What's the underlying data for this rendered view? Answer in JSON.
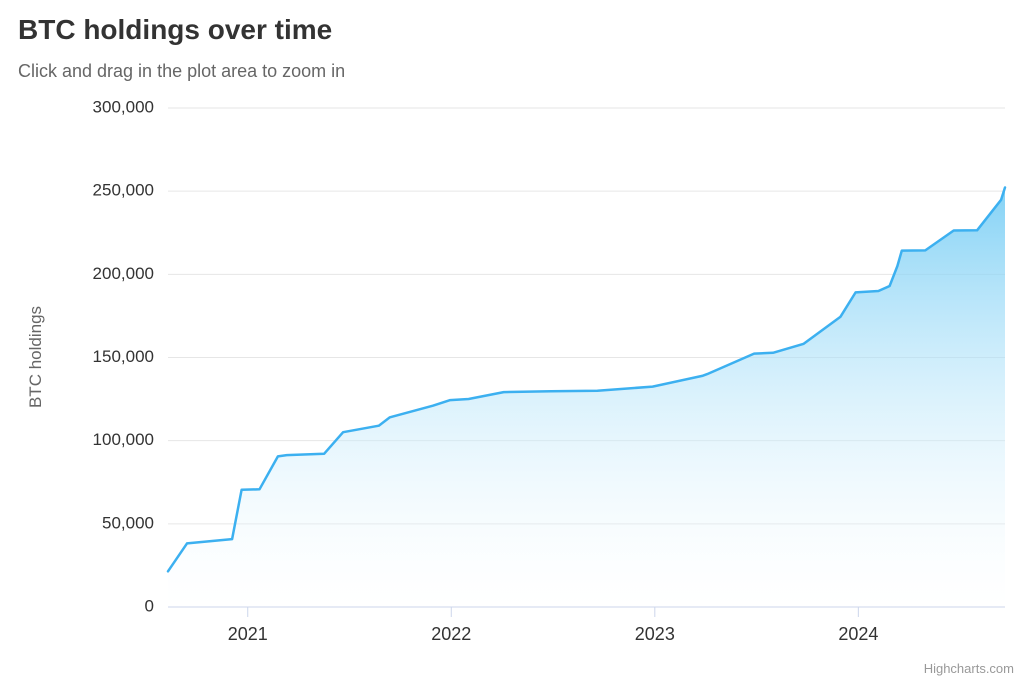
{
  "header": {
    "title": "BTC holdings over time",
    "subtitle": "Click and drag in the plot area to zoom in"
  },
  "credits": {
    "label": "Highcharts.com"
  },
  "colors": {
    "line": "#3cb0f0",
    "area_top": "#55c1f2",
    "area_bottom": "#ffffff",
    "grid": "#e6e6e6",
    "axis_line": "#ccd6eb",
    "title_text": "#333333",
    "subtitle_text": "#666666",
    "label_text": "#333333",
    "yaxis_title_text": "#666666",
    "credits_text": "#999999"
  },
  "chart_data": {
    "type": "area",
    "title": "BTC holdings over time",
    "subtitle": "Click and drag in the plot area to zoom in",
    "xlabel": "",
    "ylabel": "BTC holdings",
    "ylim": [
      0,
      300000
    ],
    "yticks": [
      0,
      50000,
      100000,
      150000,
      200000,
      250000,
      300000
    ],
    "ytick_labels": [
      "0",
      "50,000",
      "100,000",
      "150,000",
      "200,000",
      "250,000",
      "300,000"
    ],
    "xticks": [
      "2021",
      "2022",
      "2023",
      "2024"
    ],
    "grid": true,
    "legend": false,
    "series": [
      {
        "name": "BTC holdings",
        "points": [
          [
            "2020-08-11",
            21454
          ],
          [
            "2020-09-14",
            38250
          ],
          [
            "2020-12-04",
            40824
          ],
          [
            "2020-12-21",
            70470
          ],
          [
            "2021-01-22",
            70784
          ],
          [
            "2021-02-24",
            90531
          ],
          [
            "2021-03-12",
            91326
          ],
          [
            "2021-05-18",
            92079
          ],
          [
            "2021-06-21",
            105085
          ],
          [
            "2021-08-24",
            108992
          ],
          [
            "2021-09-13",
            114042
          ],
          [
            "2021-11-29",
            121044
          ],
          [
            "2021-12-30",
            124391
          ],
          [
            "2022-02-01",
            125051
          ],
          [
            "2022-04-05",
            129218
          ],
          [
            "2022-06-29",
            129699
          ],
          [
            "2022-09-20",
            130000
          ],
          [
            "2022-12-28",
            132500
          ],
          [
            "2023-03-27",
            138955
          ],
          [
            "2023-04-05",
            140000
          ],
          [
            "2023-06-28",
            152333
          ],
          [
            "2023-08-01",
            152800
          ],
          [
            "2023-09-25",
            158245
          ],
          [
            "2023-11-30",
            174530
          ],
          [
            "2023-12-27",
            189150
          ],
          [
            "2024-02-06",
            190000
          ],
          [
            "2024-02-26",
            193000
          ],
          [
            "2024-03-11",
            205000
          ],
          [
            "2024-03-19",
            214246
          ],
          [
            "2024-04-30",
            214400
          ],
          [
            "2024-06-20",
            226331
          ],
          [
            "2024-08-01",
            226500
          ],
          [
            "2024-09-13",
            244800
          ],
          [
            "2024-09-20",
            252220
          ]
        ]
      }
    ]
  }
}
